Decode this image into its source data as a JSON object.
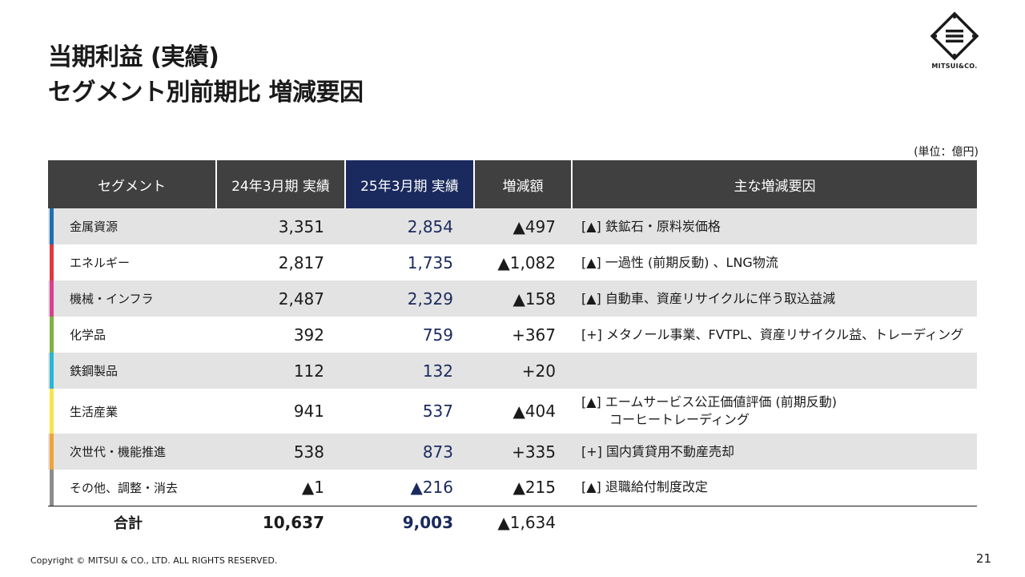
{
  "title": {
    "line1": "当期利益 (実績)",
    "line2": "セグメント別前期比 増減要因"
  },
  "logo": {
    "text": "MITSUI&CO."
  },
  "unit": "(単位：億円)",
  "table": {
    "headers": [
      "セグメント",
      "24年3月期 実績",
      "25年3月期 実績",
      "増減額",
      "主な増減要因"
    ],
    "rows": [
      {
        "segment": "金属資源",
        "color": "#1f6fb5",
        "prev": "3,351",
        "curr": "2,854",
        "diff": "▲497",
        "reason": "[▲] 鉄鉱石・原料炭価格",
        "reason2": ""
      },
      {
        "segment": "エネルギー",
        "color": "#e0393e",
        "prev": "2,817",
        "curr": "1,735",
        "diff": "▲1,082",
        "reason": "[▲] 一過性 (前期反動) 、LNG物流",
        "reason2": ""
      },
      {
        "segment": "機械・インフラ",
        "color": "#d9418c",
        "prev": "2,487",
        "curr": "2,329",
        "diff": "▲158",
        "reason": "[▲] 自動車、資産リサイクルに伴う取込益減",
        "reason2": ""
      },
      {
        "segment": "化学品",
        "color": "#7cb342",
        "prev": "392",
        "curr": "759",
        "diff": "+367",
        "reason": "[+] メタノール事業、FVTPL、資産リサイクル益、トレーディング",
        "reason2": ""
      },
      {
        "segment": "鉄鋼製品",
        "color": "#29b6d6",
        "prev": "112",
        "curr": "132",
        "diff": "+20",
        "reason": "",
        "reason2": ""
      },
      {
        "segment": "生活産業",
        "color": "#f5e64a",
        "prev": "941",
        "curr": "537",
        "diff": "▲404",
        "reason": "[▲] エームサービス公正価値評価 (前期反動)",
        "reason2": "コーヒートレーディング"
      },
      {
        "segment": "次世代・機能推進",
        "color": "#f0a33a",
        "prev": "538",
        "curr": "873",
        "diff": "+335",
        "reason": "[+] 国内賃貸用不動産売却",
        "reason2": ""
      },
      {
        "segment": "その他、調整・消去",
        "color": "#8c8c8c",
        "prev": "▲1",
        "curr": "▲216",
        "diff": "▲215",
        "reason": "[▲] 退職給付制度改定",
        "reason2": ""
      }
    ],
    "total": {
      "label": "合計",
      "prev": "10,637",
      "curr": "9,003",
      "diff": "▲1,634"
    }
  },
  "footer": {
    "copyright": "Copyright © MITSUI & CO., LTD. ALL RIGHTS RESERVED.",
    "page": "21"
  }
}
